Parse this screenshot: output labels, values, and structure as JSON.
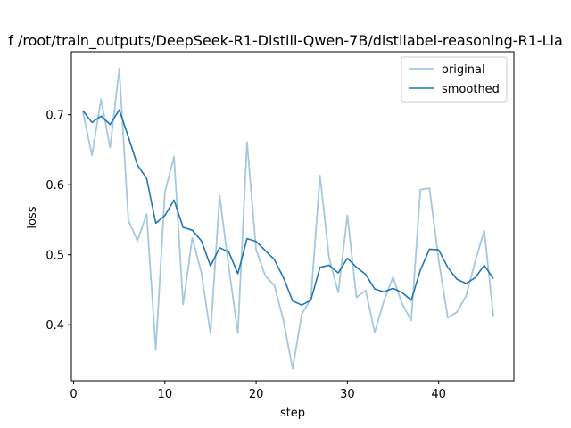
{
  "chart_data": {
    "type": "line",
    "title": "f /root/train_outputs/DeepSeek-R1-Distill-Qwen-7B/distilabel-reasoning-R1-Lla",
    "xlabel": "step",
    "ylabel": "loss",
    "xlim": [
      -0.25,
      48.25
    ],
    "ylim": [
      0.32,
      0.79
    ],
    "xticks": [
      0,
      10,
      20,
      30,
      40
    ],
    "yticks": [
      0.4,
      0.5,
      0.6,
      0.7
    ],
    "legend": "upper right",
    "grid": false,
    "x": [
      1,
      2,
      3,
      4,
      5,
      6,
      7,
      8,
      9,
      10,
      11,
      12,
      13,
      14,
      15,
      16,
      17,
      18,
      19,
      20,
      21,
      22,
      23,
      24,
      25,
      26,
      27,
      28,
      29,
      30,
      31,
      32,
      33,
      34,
      35,
      36,
      37,
      38,
      39,
      40,
      41,
      42,
      43,
      44,
      45,
      46
    ],
    "series": [
      {
        "name": "original",
        "color": "#a6c8df",
        "values": [
          0.705,
          0.642,
          0.722,
          0.653,
          0.766,
          0.549,
          0.52,
          0.558,
          0.364,
          0.589,
          0.64,
          0.429,
          0.524,
          0.474,
          0.387,
          0.584,
          0.482,
          0.388,
          0.661,
          0.507,
          0.47,
          0.456,
          0.406,
          0.337,
          0.415,
          0.437,
          0.613,
          0.495,
          0.446,
          0.556,
          0.439,
          0.449,
          0.389,
          0.434,
          0.468,
          0.43,
          0.406,
          0.593,
          0.595,
          0.493,
          0.41,
          0.418,
          0.441,
          0.49,
          0.535,
          0.412
        ]
      },
      {
        "name": "smoothed",
        "color": "#1f77b4",
        "values": [
          0.706,
          0.689,
          0.698,
          0.686,
          0.707,
          0.668,
          0.628,
          0.609,
          0.545,
          0.556,
          0.578,
          0.539,
          0.535,
          0.52,
          0.484,
          0.51,
          0.504,
          0.473,
          0.523,
          0.519,
          0.506,
          0.493,
          0.467,
          0.434,
          0.428,
          0.435,
          0.482,
          0.485,
          0.474,
          0.495,
          0.482,
          0.472,
          0.451,
          0.447,
          0.452,
          0.446,
          0.435,
          0.478,
          0.508,
          0.507,
          0.482,
          0.465,
          0.459,
          0.467,
          0.485,
          0.466
        ]
      }
    ]
  }
}
